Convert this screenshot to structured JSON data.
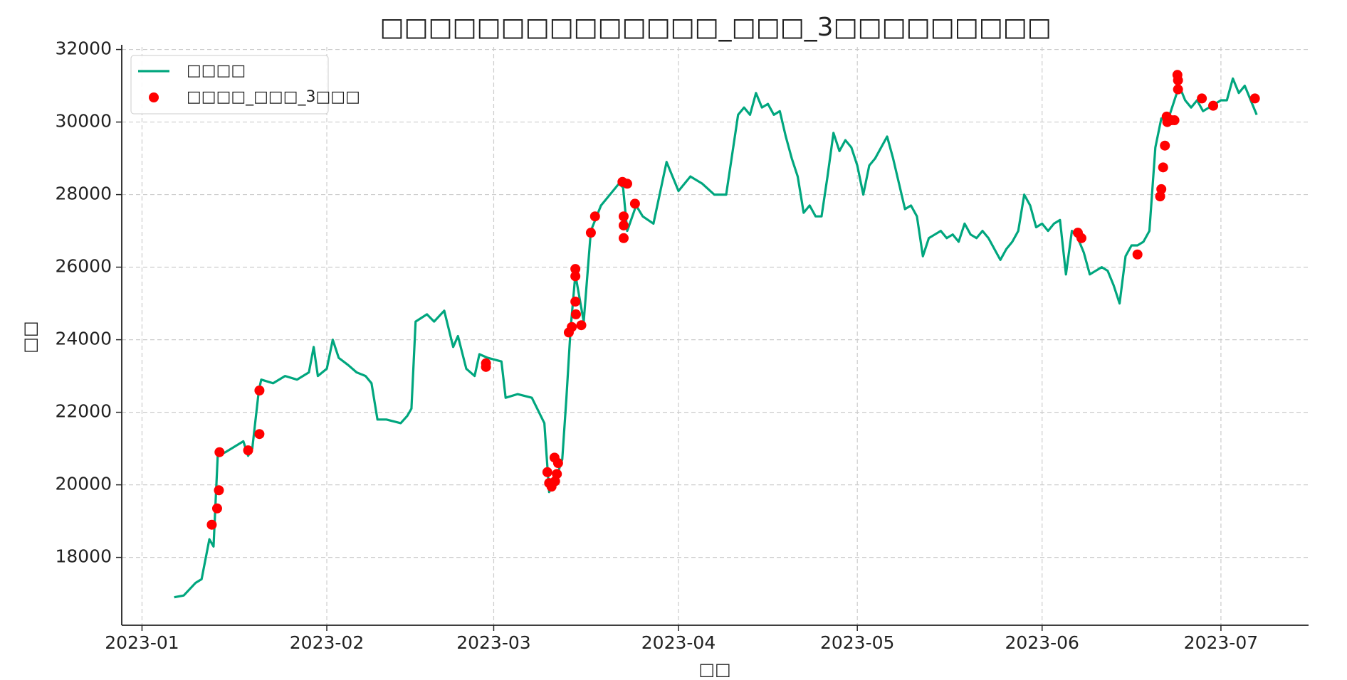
{
  "chart_data": {
    "type": "line",
    "title": "□□□□□□□□□□□□□□_□□□_3□□□□□□□□□",
    "x_label": "□□",
    "y_label": "□□",
    "xlim": [
      -3.4,
      195.7
    ],
    "xticks": [
      {
        "value": 0,
        "label": "2023-01"
      },
      {
        "value": 31,
        "label": "2023-02"
      },
      {
        "value": 59,
        "label": "2023-03"
      },
      {
        "value": 90,
        "label": "2023-04"
      },
      {
        "value": 120,
        "label": "2023-05"
      },
      {
        "value": 151,
        "label": "2023-06"
      },
      {
        "value": 181,
        "label": "2023-07"
      }
    ],
    "ylim": [
      16130,
      32070
    ],
    "yticks": [
      18000,
      20000,
      22000,
      24000,
      26000,
      28000,
      30000,
      32000
    ],
    "grid": true,
    "legend_position": "upper-left",
    "series": [
      {
        "name": "□□□□",
        "kind": "line",
        "color": "#00a67e",
        "x": [
          5.4,
          7,
          9,
          10,
          11.3,
          12,
          12.7,
          14,
          15,
          17,
          17.8,
          18.5,
          19.6,
          20,
          22,
          24,
          26,
          28,
          28.8,
          29.5,
          31,
          32,
          33,
          34.6,
          36,
          37.5,
          38.5,
          39.5,
          41,
          43.4,
          44.5,
          45.2,
          45.9,
          47.8,
          49,
          50.7,
          52.2,
          53,
          54.4,
          55.8,
          56.6,
          58,
          60.3,
          61,
          63,
          65.4,
          67.5,
          68.3,
          69.7,
          70.5,
          71.2,
          71.9,
          72.7,
          74.1,
          75.3,
          77,
          78.5,
          80,
          80.7,
          81.4,
          82.9,
          84,
          85.8,
          88,
          90,
          92,
          94,
          96,
          98,
          100,
          101,
          102,
          103,
          104,
          105,
          106,
          107,
          108,
          109,
          110,
          111,
          112,
          113,
          114,
          115,
          116,
          117,
          118,
          119,
          120,
          121,
          122,
          123,
          124,
          125,
          126,
          127,
          128,
          129,
          130,
          131,
          132,
          133,
          134,
          135,
          136,
          137,
          138,
          139,
          140,
          141,
          142,
          143,
          144,
          145,
          146,
          147,
          148,
          149,
          150,
          151,
          152,
          153,
          154,
          155,
          156,
          157,
          158,
          159,
          160,
          161,
          162,
          163,
          164,
          165,
          166,
          167,
          168,
          169,
          170,
          171,
          172,
          173,
          174,
          175,
          176,
          177,
          178,
          179,
          180,
          181,
          182,
          183,
          184,
          185,
          186,
          187
        ],
        "values": [
          16900,
          16950,
          17300,
          17400,
          18500,
          18300,
          20800,
          20900,
          21000,
          21200,
          20800,
          21000,
          22600,
          22900,
          22800,
          23000,
          22900,
          23100,
          23800,
          23000,
          23200,
          24000,
          23500,
          23300,
          23100,
          23000,
          22800,
          21800,
          21800,
          21700,
          21900,
          22100,
          24500,
          24700,
          24500,
          24800,
          23800,
          24100,
          23200,
          23000,
          23600,
          23500,
          23400,
          22400,
          22500,
          22400,
          21700,
          19800,
          20300,
          20700,
          22400,
          24300,
          25800,
          24500,
          27000,
          27700,
          28000,
          28300,
          28200,
          27000,
          27700,
          27400,
          27200,
          28900,
          28100,
          28500,
          28300,
          28000,
          28000,
          30200,
          30400,
          30200,
          30800,
          30400,
          30500,
          30200,
          30300,
          29600,
          29000,
          28500,
          27500,
          27700,
          27400,
          27400,
          28500,
          29700,
          29200,
          29500,
          29300,
          28800,
          28000,
          28800,
          29000,
          29300,
          29600,
          29000,
          28300,
          27600,
          27700,
          27400,
          26300,
          26800,
          26900,
          27000,
          26800,
          26900,
          26700,
          27200,
          26900,
          26800,
          27000,
          26800,
          26500,
          26200,
          26500,
          26700,
          27000,
          28000,
          27700,
          27100,
          27200,
          27000,
          27200,
          27300,
          25800,
          27000,
          26800,
          26400,
          25800,
          25900,
          26000,
          25900,
          25500,
          25000,
          26300,
          26600,
          26600,
          26700,
          27000,
          29300,
          30100,
          30000,
          30500,
          31000,
          30600,
          30400,
          30600,
          30300,
          30400,
          30500,
          30600,
          30600,
          31200,
          30800,
          31000,
          30600,
          30200
        ]
      },
      {
        "name": "□□□□_□□□_3□□□",
        "kind": "scatter",
        "color": "#ff0000",
        "x": [
          11.7,
          12.6,
          12.9,
          13.0,
          17.8,
          19.7,
          19.7,
          57.7,
          57.7,
          68.0,
          68.3,
          68.7,
          69.2,
          69.6,
          69.8,
          69.3,
          71.6,
          72.1,
          72.7,
          72.7,
          72.7,
          72.8,
          73.7,
          75.3,
          76.0,
          80.6,
          81.4,
          80.8,
          80.8,
          80.8,
          82.7,
          157.0,
          157.6,
          167.0,
          170.8,
          171.0,
          171.3,
          171.6,
          171.9,
          172.0,
          172.7,
          173.2,
          173.7,
          173.8,
          173.8,
          177.8,
          179.7,
          186.7
        ],
        "values": [
          18900,
          19350,
          19850,
          20900,
          20950,
          21400,
          22600,
          23350,
          23250,
          20350,
          20050,
          19950,
          20750,
          20300,
          20600,
          20100,
          24200,
          24350,
          25950,
          25750,
          25050,
          24700,
          24400,
          26950,
          27400,
          28350,
          28300,
          27400,
          27150,
          26800,
          27750,
          26950,
          26800,
          26350,
          27950,
          28150,
          28750,
          29350,
          30150,
          30000,
          30050,
          30050,
          31300,
          31150,
          30900,
          30650,
          30450,
          30650
        ]
      }
    ]
  }
}
